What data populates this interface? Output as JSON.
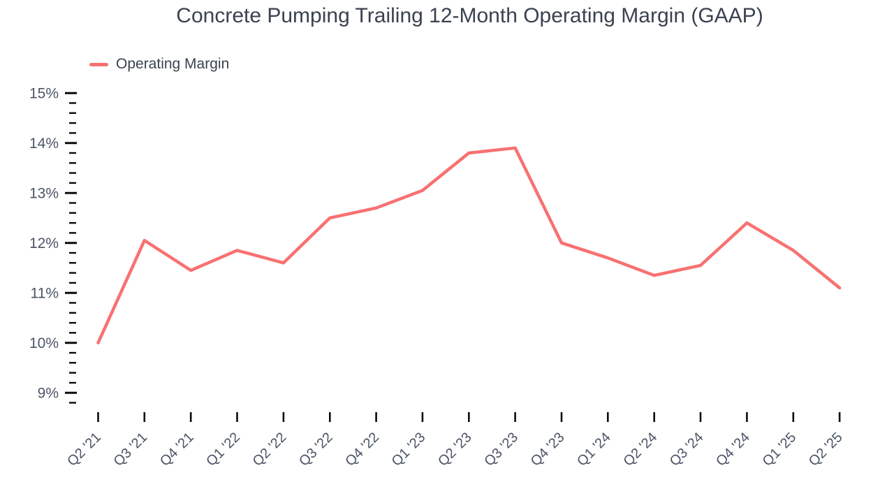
{
  "title": "Concrete Pumping Trailing 12-Month Operating Margin (GAAP)",
  "legend": {
    "items": [
      {
        "label": "Operating Margin",
        "color": "#f87171"
      }
    ]
  },
  "colors": {
    "line": "#f87171",
    "title_text": "#3a4250",
    "axis_label": "#4b5466",
    "tick": "#0b0b0b",
    "background": "#ffffff"
  },
  "chart_data": {
    "type": "line",
    "title": "Concrete Pumping Trailing 12-Month Operating Margin (GAAP)",
    "xlabel": "",
    "ylabel": "",
    "legend_position": "top-left",
    "grid": false,
    "markers": false,
    "categories": [
      "Q2 '21",
      "Q3 '21",
      "Q4 '21",
      "Q1 '22",
      "Q2 '22",
      "Q3 '22",
      "Q4 '22",
      "Q1 '23",
      "Q2 '23",
      "Q3 '23",
      "Q4 '23",
      "Q1 '24",
      "Q2 '24",
      "Q3 '24",
      "Q4 '24",
      "Q1 '25",
      "Q2 '25"
    ],
    "series": [
      {
        "name": "Operating Margin",
        "unit": "%",
        "values": [
          10.0,
          12.05,
          11.45,
          11.85,
          11.6,
          12.5,
          12.7,
          13.05,
          13.8,
          13.9,
          12.0,
          11.7,
          11.35,
          11.55,
          12.4,
          11.85,
          11.1
        ]
      }
    ],
    "ylim": [
      8.8,
      15.0
    ],
    "ytick_major_step": 1,
    "ytick_minor_step": 0.2,
    "ytick_labels": [
      "15%",
      "14%",
      "13%",
      "12%",
      "11%",
      "10%",
      "9%"
    ],
    "ytick_label_format": "{value}%"
  }
}
